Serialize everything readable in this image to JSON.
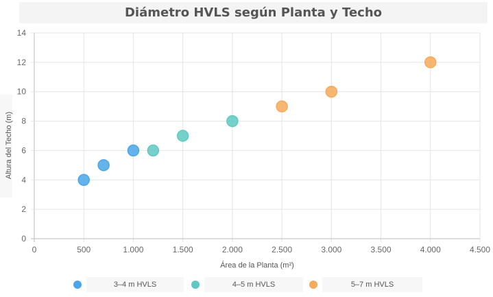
{
  "chart_data": {
    "type": "scatter",
    "title": "Diámetro HVLS según Planta y Techo",
    "xlabel": "Área de la Planta (m²)",
    "ylabel": "Altura del Techo (m)",
    "xlim": [
      0,
      4500
    ],
    "ylim": [
      0,
      14
    ],
    "x_ticks": [
      "0",
      "500",
      "1.000",
      "1.500",
      "2.000",
      "2.500",
      "3.000",
      "3.500",
      "4.000",
      "4.500"
    ],
    "y_ticks": [
      "0",
      "2",
      "4",
      "6",
      "8",
      "10",
      "12",
      "14"
    ],
    "grid": true,
    "legend_position": "bottom",
    "series": [
      {
        "name": "3–4 m HVLS",
        "color": "#4aa6e8",
        "points": [
          {
            "x": 500,
            "y": 4
          },
          {
            "x": 700,
            "y": 5
          },
          {
            "x": 1000,
            "y": 6
          }
        ]
      },
      {
        "name": "4–5 m HVLS",
        "color": "#5ec9c2",
        "points": [
          {
            "x": 1200,
            "y": 6
          },
          {
            "x": 1500,
            "y": 7
          },
          {
            "x": 2000,
            "y": 8
          }
        ]
      },
      {
        "name": "5–7 m HVLS",
        "color": "#f6aa5a",
        "points": [
          {
            "x": 2500,
            "y": 9
          },
          {
            "x": 3000,
            "y": 10
          },
          {
            "x": 4000,
            "y": 12
          }
        ]
      }
    ]
  }
}
